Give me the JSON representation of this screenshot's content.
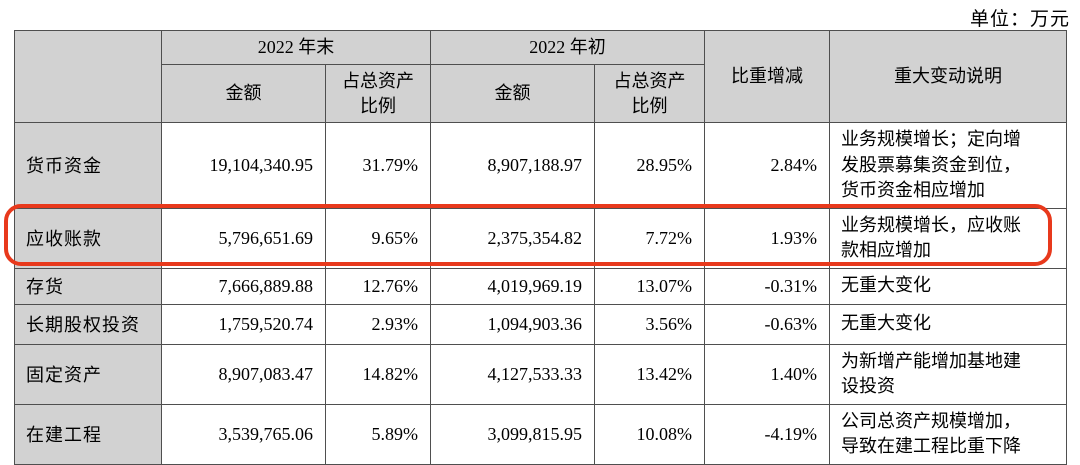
{
  "unit_label": "单位：万元",
  "colors": {
    "highlight_box": "#e8391c",
    "header_fill": "#d2d2d2",
    "table_border": "#4f4f4f"
  },
  "table": {
    "header": {
      "period_end": "2022 年末",
      "period_begin": "2022 年初",
      "amount": "金额",
      "ratio": "占总资产\n比例",
      "change": "比重增减",
      "remark": "重大变动说明"
    },
    "rows": [
      {
        "label": "货币资金",
        "end_amount": "19,104,340.95",
        "end_ratio": "31.79%",
        "begin_amount": "8,907,188.97",
        "begin_ratio": "28.95%",
        "change": "2.84%",
        "remark": "业务规模增长；定向增发股票募集资金到位，货币资金相应增加"
      },
      {
        "label": "应收账款",
        "end_amount": "5,796,651.69",
        "end_ratio": "9.65%",
        "begin_amount": "2,375,354.82",
        "begin_ratio": "7.72%",
        "change": "1.93%",
        "remark": "业务规模增长，应收账款相应增加",
        "highlighted": true
      },
      {
        "label": "存货",
        "end_amount": "7,666,889.88",
        "end_ratio": "12.76%",
        "begin_amount": "4,019,969.19",
        "begin_ratio": "13.07%",
        "change": "-0.31%",
        "remark": "无重大变化"
      },
      {
        "label": "长期股权投资",
        "end_amount": "1,759,520.74",
        "end_ratio": "2.93%",
        "begin_amount": "1,094,903.36",
        "begin_ratio": "3.56%",
        "change": "-0.63%",
        "remark": "无重大变化"
      },
      {
        "label": "固定资产",
        "end_amount": "8,907,083.47",
        "end_ratio": "14.82%",
        "begin_amount": "4,127,533.33",
        "begin_ratio": "13.42%",
        "change": "1.40%",
        "remark": "为新增产能增加基地建设投资"
      },
      {
        "label": "在建工程",
        "end_amount": "3,539,765.06",
        "end_ratio": "5.89%",
        "begin_amount": "3,099,815.95",
        "begin_ratio": "10.08%",
        "change": "-4.19%",
        "remark": "公司总资产规模增加，导致在建工程比重下降"
      }
    ]
  }
}
